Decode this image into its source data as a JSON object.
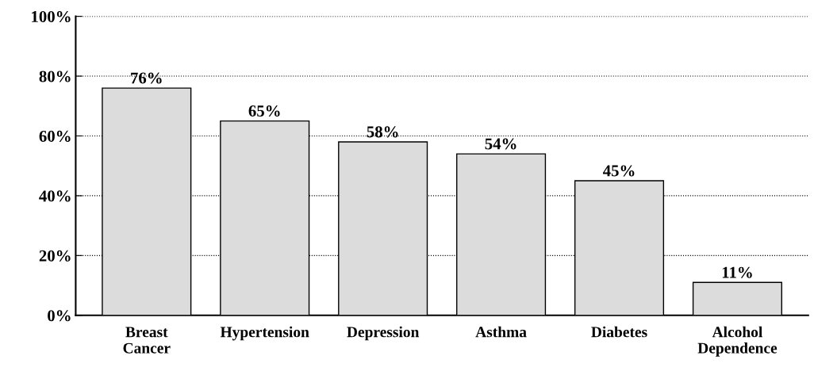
{
  "chart_data": {
    "type": "bar",
    "categories": [
      "Breast\nCancer",
      "Hypertension",
      "Depression",
      "Asthma",
      "Diabetes",
      "Alcohol\nDependence"
    ],
    "values": [
      76,
      65,
      58,
      54,
      45,
      11
    ],
    "color": "#dcdcdc",
    "value_labels": [
      "76%",
      "65%",
      "58%",
      "54%",
      "45%",
      "11%"
    ],
    "ylim": [
      0,
      100
    ],
    "yticks": [
      {
        "value": 0,
        "label": "0%"
      },
      {
        "value": 20,
        "label": "20%"
      },
      {
        "value": 40,
        "label": "40%"
      },
      {
        "value": 60,
        "label": "60%"
      },
      {
        "value": 80,
        "label": "80%"
      },
      {
        "value": 100,
        "label": "100%"
      }
    ],
    "grid": "y",
    "legend": false
  }
}
